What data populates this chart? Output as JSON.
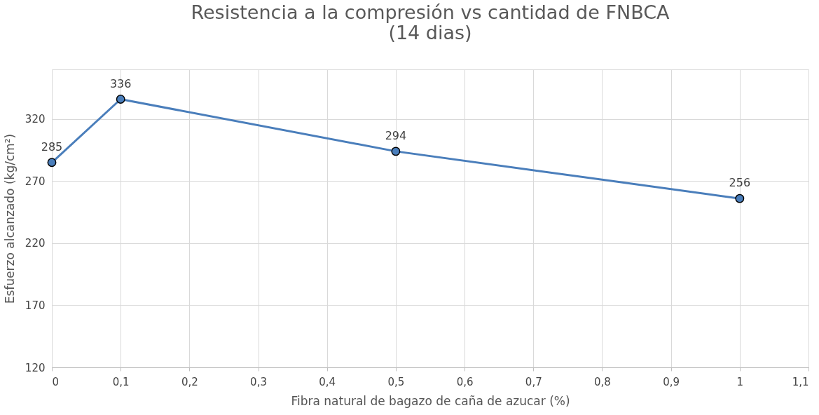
{
  "chart_data": {
    "type": "line",
    "title": "Resistencia a la compresión vs cantidad de FNBCA",
    "subtitle": "(14 dias)",
    "xlabel": "Fibra natural de bagazo de caña de azucar (%)",
    "ylabel": "Esfuerzo alcanzado (kg/cm²)",
    "x": [
      0,
      0.1,
      0.5,
      1
    ],
    "series": [
      {
        "color": "#4a7ebb",
        "values": [
          285,
          336,
          294,
          256
        ]
      }
    ],
    "xlim": [
      0,
      1.1
    ],
    "xticks": [
      0,
      {
        "value": 0.1,
        "label": "0,1"
      },
      {
        "value": 0.2,
        "label": "0,2"
      },
      {
        "value": 0.3,
        "label": "0,3"
      },
      {
        "value": 0.4,
        "label": "0,4"
      },
      {
        "value": 0.5,
        "label": "0,5"
      },
      {
        "value": 0.6,
        "label": "0,6"
      },
      {
        "value": 0.7,
        "label": "0,7"
      },
      {
        "value": 0.8,
        "label": "0,8"
      },
      {
        "value": 0.9,
        "label": "0,9"
      },
      1,
      {
        "value": 1.1,
        "label": "1,1"
      }
    ],
    "ylim": [
      120,
      360
    ],
    "yticks": [
      120,
      170,
      220,
      270,
      320,
      {
        "value": 360,
        "label": null
      }
    ],
    "grid": true,
    "marker": "circle",
    "line_style": "solid",
    "data_labels": true
  }
}
